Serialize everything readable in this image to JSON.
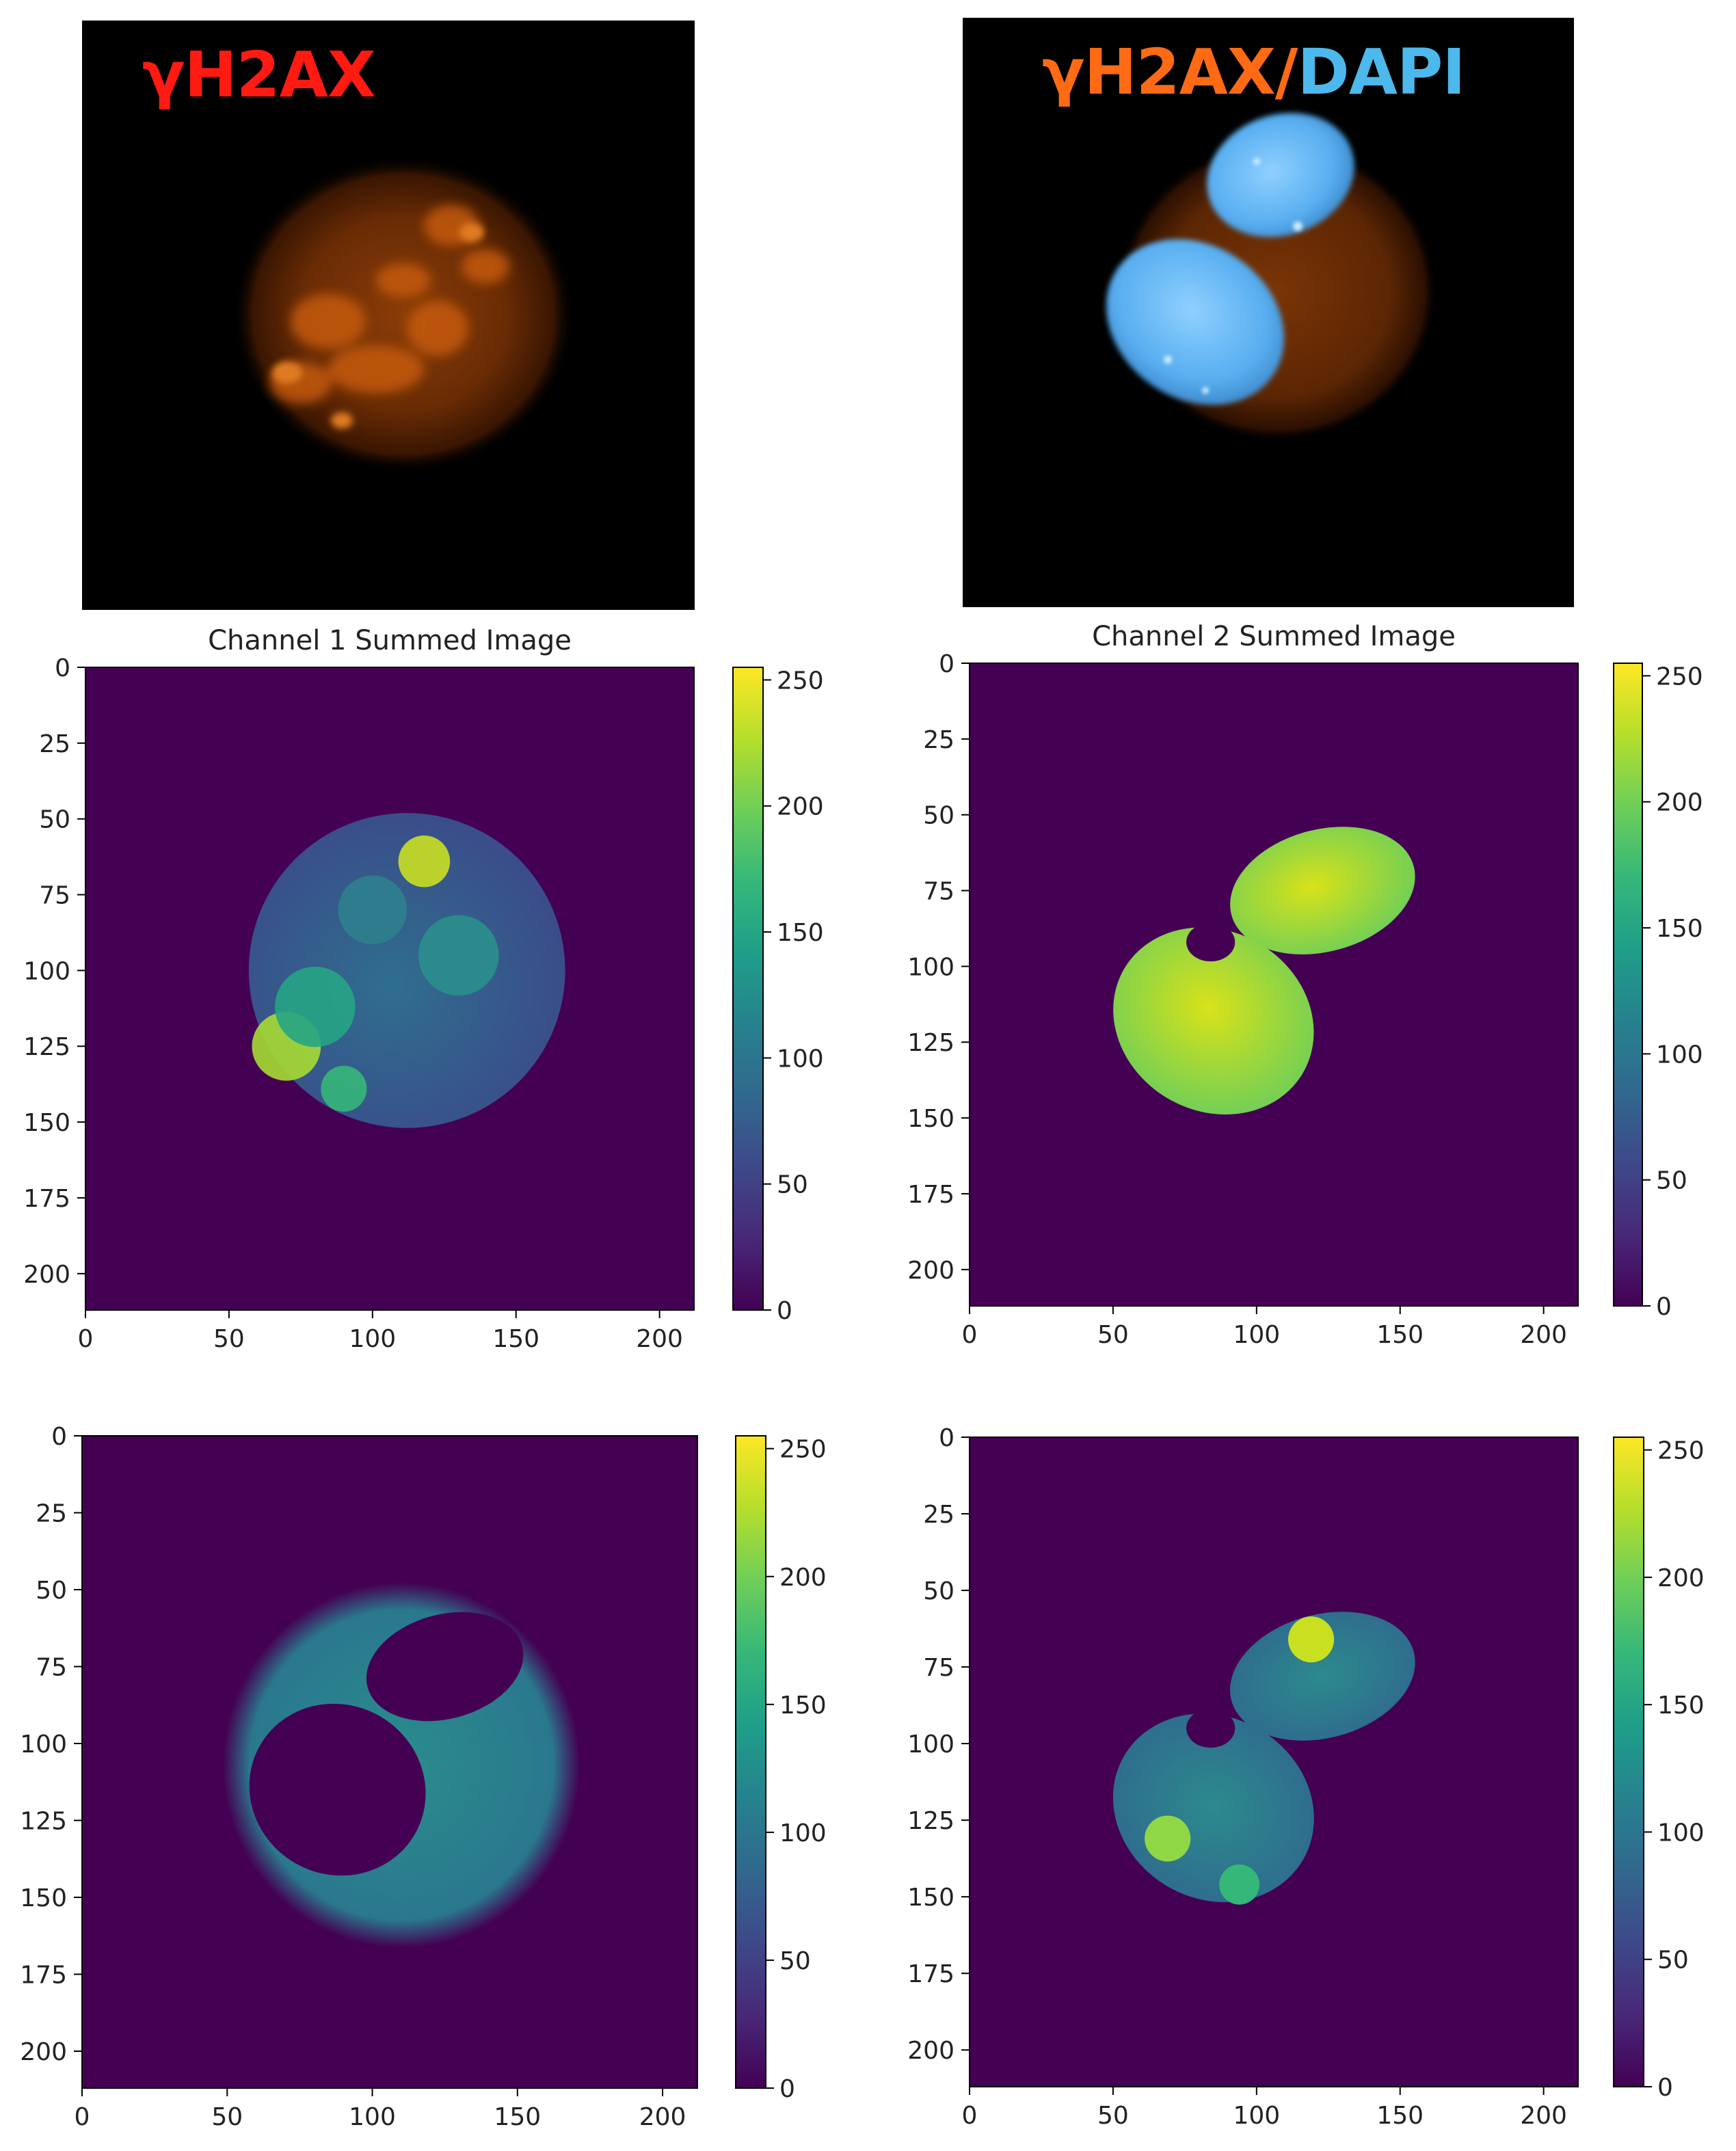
{
  "top_panels": [
    {
      "label_parts": [
        {
          "text": "γH2AX",
          "color": "#ff1a12"
        }
      ]
    },
    {
      "label_parts": [
        {
          "text": "γH2AX/",
          "color": "#ff6a14"
        },
        {
          "text": "DAPI",
          "color": "#4db8ec"
        }
      ]
    }
  ],
  "colorbar_ticks": [
    "0",
    "50",
    "100",
    "150",
    "200",
    "250"
  ],
  "chart_data": [
    {
      "type": "heatmap",
      "title": "Channel 1 Summed Image",
      "x_ticks": [
        "0",
        "50",
        "100",
        "150",
        "200"
      ],
      "y_ticks": [
        "0",
        "25",
        "50",
        "75",
        "100",
        "125",
        "150",
        "175",
        "200"
      ],
      "xlim": [
        0,
        212
      ],
      "ylim": [
        212,
        0
      ],
      "colorbar": {
        "min": 0,
        "max": 255,
        "colormap": "viridis"
      }
    },
    {
      "type": "heatmap",
      "title": "Channel 2 Summed Image",
      "x_ticks": [
        "0",
        "50",
        "100",
        "150",
        "200"
      ],
      "y_ticks": [
        "0",
        "25",
        "50",
        "75",
        "100",
        "125",
        "150",
        "175",
        "200"
      ],
      "xlim": [
        0,
        212
      ],
      "ylim": [
        212,
        0
      ],
      "colorbar": {
        "min": 0,
        "max": 255,
        "colormap": "viridis"
      }
    },
    {
      "type": "heatmap",
      "title": "",
      "x_ticks": [
        "0",
        "50",
        "100",
        "150",
        "200"
      ],
      "y_ticks": [
        "0",
        "25",
        "50",
        "75",
        "100",
        "125",
        "150",
        "175",
        "200"
      ],
      "xlim": [
        0,
        212
      ],
      "ylim": [
        212,
        0
      ],
      "colorbar": {
        "min": 0,
        "max": 255,
        "colormap": "viridis"
      }
    },
    {
      "type": "heatmap",
      "title": "",
      "x_ticks": [
        "0",
        "50",
        "100",
        "150",
        "200"
      ],
      "y_ticks": [
        "0",
        "25",
        "50",
        "75",
        "100",
        "125",
        "150",
        "175",
        "200"
      ],
      "xlim": [
        0,
        212
      ],
      "ylim": [
        212,
        0
      ],
      "colorbar": {
        "min": 0,
        "max": 255,
        "colormap": "viridis"
      }
    }
  ]
}
